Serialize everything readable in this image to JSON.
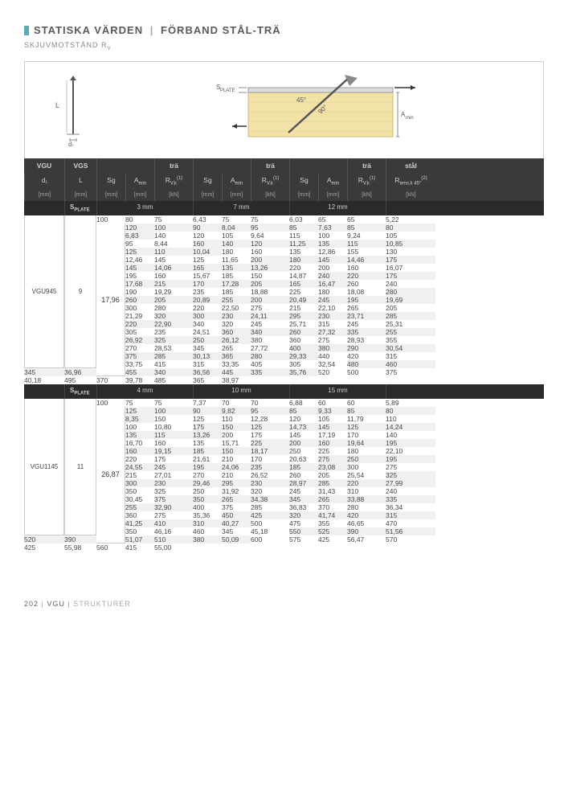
{
  "title": {
    "a": "STATISKA VÄRDEN",
    "b": "FÖRBAND STÅL-TRÄ"
  },
  "subtitle": "SKJUVMOTSTÅND R",
  "subtitle_sub": "V",
  "diagram": {
    "label_L": "L",
    "label_d1": "d₁",
    "label_splate": "SPLATE",
    "label_amin": "Amin",
    "label_45": "45°",
    "label_90": "90°"
  },
  "header": {
    "vgu": "VGU",
    "vgs": "VGS",
    "tra": "trä",
    "stal": "stål",
    "d1": "d₁",
    "L": "L",
    "Sg": "Sg",
    "Amin": "Amin",
    "Rvk": "R",
    "Rvk_sub": "V,k",
    "Rvk_sup": "(1)",
    "Rtens": "R",
    "Rtens_sub": "tens,k 45°",
    "Rtens_sup": "(2)",
    "mm": "[mm]",
    "kN": "[kN]"
  },
  "sections": [
    {
      "vgu_label": "VGU945",
      "d1": "9",
      "splate_label": "SPLATE",
      "thickness": [
        "3 mm",
        "7 mm",
        "12 mm"
      ],
      "stal_value": "17,96",
      "rows": [
        [
          "100",
          "80",
          "75",
          "6,43",
          "75",
          "75",
          "6,03",
          "65",
          "65",
          "5,22"
        ],
        [
          "120",
          "100",
          "90",
          "8,04",
          "95",
          "85",
          "7,63",
          "85",
          "80",
          "6,83"
        ],
        [
          "140",
          "120",
          "105",
          "9,64",
          "115",
          "100",
          "9,24",
          "105",
          "95",
          "8,44"
        ],
        [
          "160",
          "140",
          "120",
          "11,25",
          "135",
          "115",
          "10,85",
          "125",
          "110",
          "10,04"
        ],
        [
          "180",
          "160",
          "135",
          "12,86",
          "155",
          "130",
          "12,46",
          "145",
          "125",
          "11,65"
        ],
        [
          "200",
          "180",
          "145",
          "14,46",
          "175",
          "145",
          "14,06",
          "165",
          "135",
          "13,26"
        ],
        [
          "220",
          "200",
          "160",
          "16,07",
          "195",
          "160",
          "15,67",
          "185",
          "150",
          "14,87"
        ],
        [
          "240",
          "220",
          "175",
          "17,68",
          "215",
          "170",
          "17,28",
          "205",
          "165",
          "16,47"
        ],
        [
          "260",
          "240",
          "190",
          "19,29",
          "235",
          "185",
          "18,88",
          "225",
          "180",
          "18,08"
        ],
        [
          "280",
          "260",
          "205",
          "20,89",
          "255",
          "200",
          "20,49",
          "245",
          "195",
          "19,69"
        ],
        [
          "300",
          "280",
          "220",
          "22,50",
          "275",
          "215",
          "22,10",
          "265",
          "205",
          "21,29"
        ],
        [
          "320",
          "300",
          "230",
          "24,11",
          "295",
          "230",
          "23,71",
          "285",
          "220",
          "22,90"
        ],
        [
          "340",
          "320",
          "245",
          "25,71",
          "315",
          "245",
          "25,31",
          "305",
          "235",
          "24,51"
        ],
        [
          "360",
          "340",
          "260",
          "27,32",
          "335",
          "255",
          "26,92",
          "325",
          "250",
          "26,12"
        ],
        [
          "380",
          "360",
          "275",
          "28,93",
          "355",
          "270",
          "28,53",
          "345",
          "265",
          "27,72"
        ],
        [
          "400",
          "380",
          "290",
          "30,54",
          "375",
          "285",
          "30,13",
          "365",
          "280",
          "29,33"
        ],
        [
          "440",
          "420",
          "315",
          "33,75",
          "415",
          "315",
          "33,35",
          "405",
          "305",
          "32,54"
        ],
        [
          "480",
          "460",
          "345",
          "36,96",
          "455",
          "340",
          "36,56",
          "445",
          "335",
          "35,76"
        ],
        [
          "520",
          "500",
          "375",
          "40,18",
          "495",
          "370",
          "39,78",
          "485",
          "365",
          "38,97"
        ]
      ]
    },
    {
      "vgu_label": "VGU1145",
      "d1": "11",
      "splate_label": "SPLATE",
      "thickness": [
        "4 mm",
        "10 mm",
        "15 mm"
      ],
      "stal_value": "26,87",
      "rows": [
        [
          "100",
          "75",
          "75",
          "7,37",
          "70",
          "70",
          "6,88",
          "60",
          "60",
          "5,89"
        ],
        [
          "125",
          "100",
          "90",
          "9,82",
          "95",
          "85",
          "9,33",
          "85",
          "80",
          "8,35"
        ],
        [
          "150",
          "125",
          "110",
          "12,28",
          "120",
          "105",
          "11,79",
          "110",
          "100",
          "10,80"
        ],
        [
          "175",
          "150",
          "125",
          "14,73",
          "145",
          "125",
          "14,24",
          "135",
          "115",
          "13,26"
        ],
        [
          "200",
          "175",
          "145",
          "17,19",
          "170",
          "140",
          "16,70",
          "160",
          "135",
          "15,71"
        ],
        [
          "225",
          "200",
          "160",
          "19,64",
          "195",
          "160",
          "19,15",
          "185",
          "150",
          "18,17"
        ],
        [
          "250",
          "225",
          "180",
          "22,10",
          "220",
          "175",
          "21,61",
          "210",
          "170",
          "20,63"
        ],
        [
          "275",
          "250",
          "195",
          "24,55",
          "245",
          "195",
          "24,06",
          "235",
          "185",
          "23,08"
        ],
        [
          "300",
          "275",
          "215",
          "27,01",
          "270",
          "210",
          "26,52",
          "260",
          "205",
          "25,54"
        ],
        [
          "325",
          "300",
          "230",
          "29,46",
          "295",
          "230",
          "28,97",
          "285",
          "220",
          "27,99"
        ],
        [
          "350",
          "325",
          "250",
          "31,92",
          "320",
          "245",
          "31,43",
          "310",
          "240",
          "30,45"
        ],
        [
          "375",
          "350",
          "265",
          "34,38",
          "345",
          "265",
          "33,88",
          "335",
          "255",
          "32,90"
        ],
        [
          "400",
          "375",
          "285",
          "36,83",
          "370",
          "280",
          "36,34",
          "360",
          "275",
          "35,36"
        ],
        [
          "450",
          "425",
          "320",
          "41,74",
          "420",
          "315",
          "41,25",
          "410",
          "310",
          "40,27"
        ],
        [
          "500",
          "475",
          "355",
          "46,65",
          "470",
          "350",
          "46,16",
          "460",
          "345",
          "45,18"
        ],
        [
          "550",
          "525",
          "390",
          "51,56",
          "520",
          "390",
          "51,07",
          "510",
          "380",
          "50,09"
        ],
        [
          "600",
          "575",
          "425",
          "56,47",
          "570",
          "425",
          "55,98",
          "560",
          "415",
          "55,00"
        ]
      ]
    }
  ],
  "footer": {
    "page": "202",
    "a": "VGU",
    "b": "STRUKTURER"
  }
}
